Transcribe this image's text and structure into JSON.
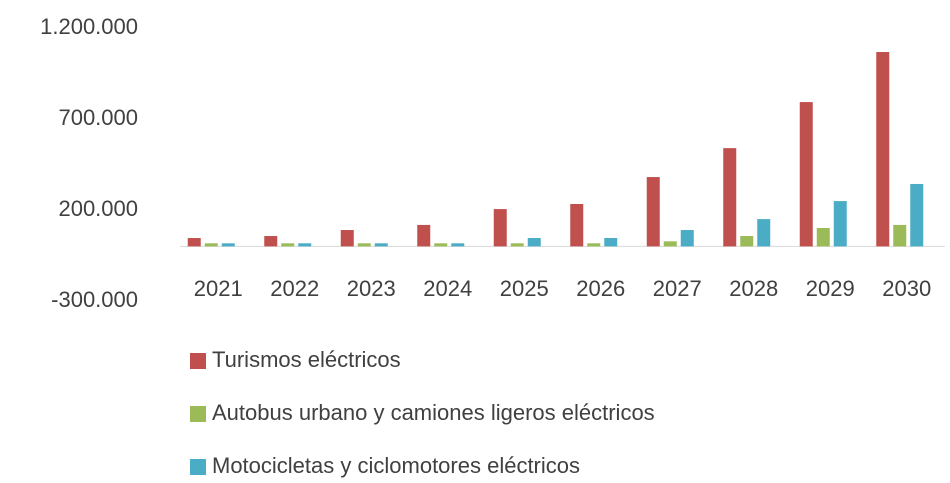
{
  "chart_data": {
    "type": "bar",
    "categories": [
      "2021",
      "2022",
      "2023",
      "2024",
      "2025",
      "2026",
      "2027",
      "2028",
      "2029",
      "2030"
    ],
    "series": [
      {
        "name": "Turismos eléctricos",
        "color": "#c0504d",
        "values": [
          46000,
          57000,
          90000,
          118000,
          205000,
          233000,
          381000,
          540000,
          793000,
          1068000
        ]
      },
      {
        "name": "Autobus urbano y camiones ligeros eléctricos",
        "color": "#9bbb59",
        "values": [
          17000,
          17000,
          17000,
          17000,
          17000,
          17000,
          28000,
          57000,
          101000,
          118000
        ]
      },
      {
        "name": "Motocicletas y ciclomotores eléctricos",
        "color": "#4bacc6",
        "values": [
          17000,
          17000,
          17000,
          17000,
          46000,
          46000,
          90000,
          150000,
          249000,
          343000
        ]
      }
    ],
    "ylim": [
      -300000,
      1200000
    ],
    "yticks": [
      {
        "value": -300000,
        "label": "-300.000"
      },
      {
        "value": 200000,
        "label": "200.000"
      },
      {
        "value": 700000,
        "label": "700.000"
      },
      {
        "value": 1200000,
        "label": "1.200.000"
      }
    ],
    "grid": false,
    "legend": "bottom"
  }
}
